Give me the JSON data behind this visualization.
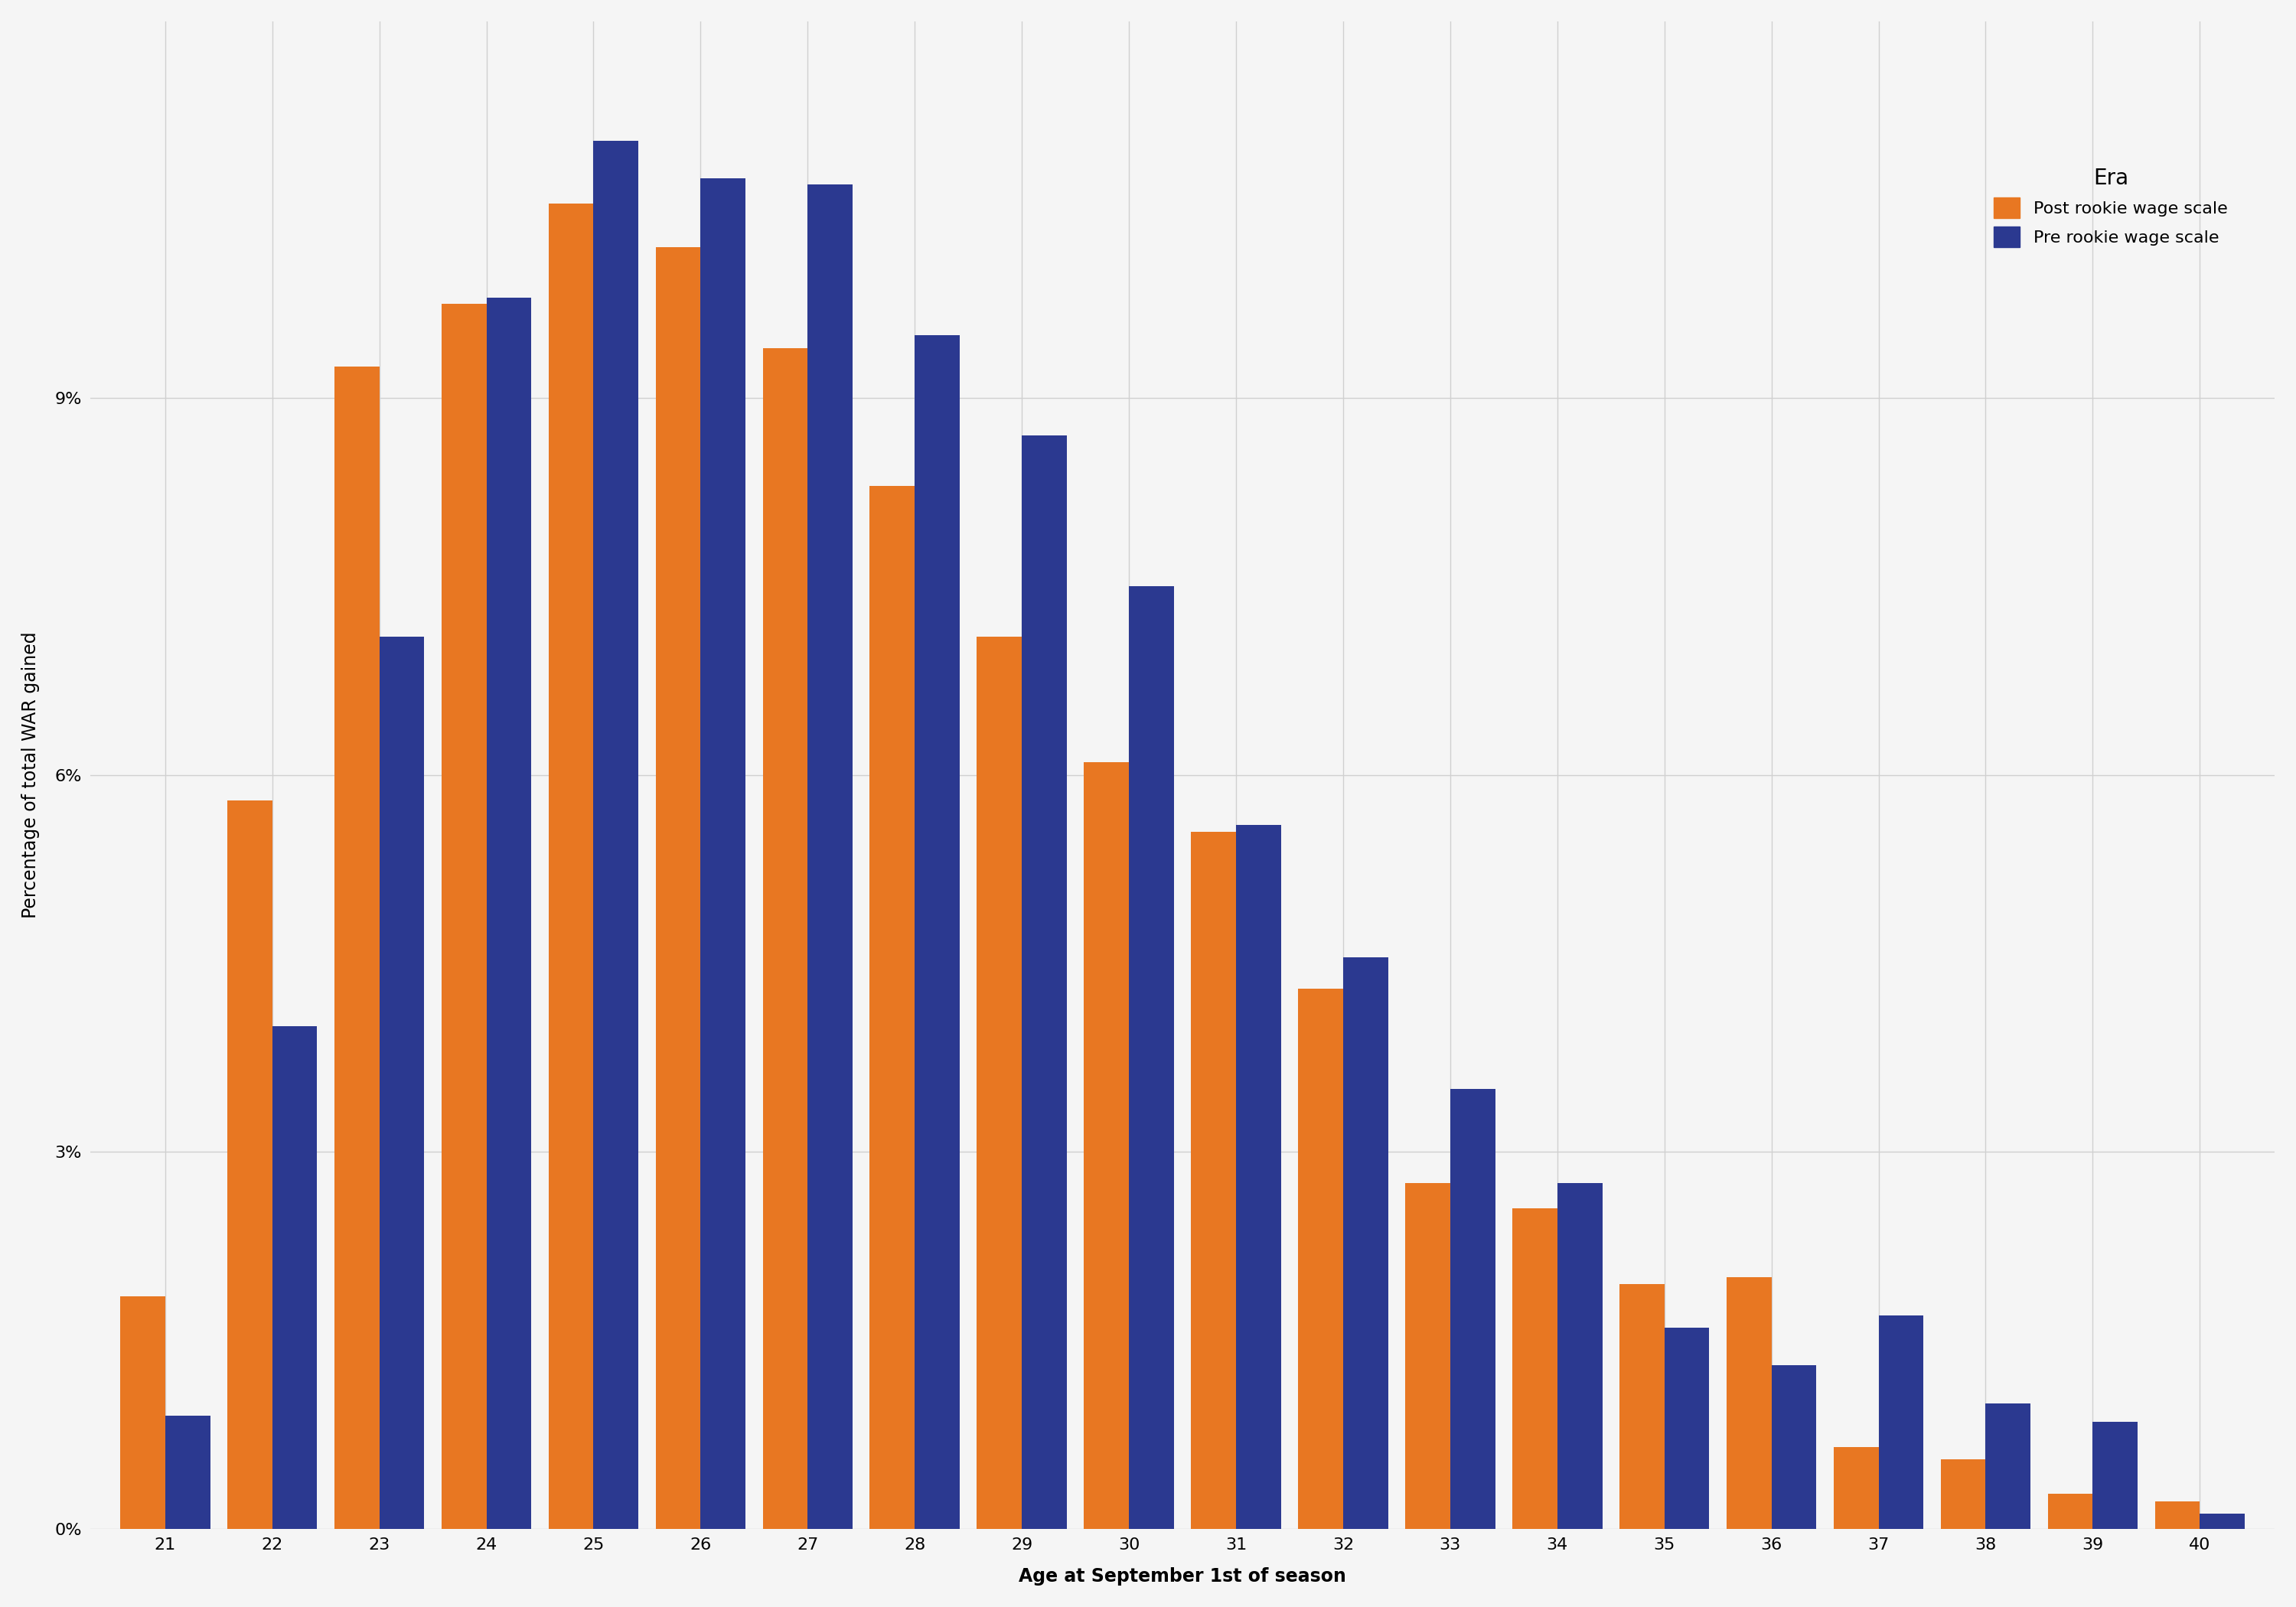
{
  "xlabel": "Age at September 1st of season",
  "ylabel": "Percentage of total WAR gained",
  "ages": [
    21,
    22,
    23,
    24,
    25,
    26,
    27,
    28,
    29,
    30,
    31,
    32,
    33,
    34,
    35,
    36,
    37,
    38,
    39,
    40
  ],
  "post_values": [
    1.85,
    5.8,
    9.25,
    9.75,
    10.55,
    10.2,
    9.4,
    8.3,
    7.1,
    6.1,
    5.55,
    4.3,
    2.75,
    2.55,
    1.95,
    2.0,
    0.65,
    0.55,
    0.28,
    0.22
  ],
  "pre_values": [
    0.9,
    4.0,
    7.1,
    9.8,
    11.05,
    10.75,
    10.7,
    9.5,
    8.7,
    7.5,
    5.6,
    4.55,
    3.5,
    2.75,
    1.6,
    1.3,
    1.7,
    1.0,
    0.85,
    0.12
  ],
  "post_color": "#E87722",
  "pre_color": "#2B3990",
  "background_color": "#f5f5f5",
  "grid_color": "#d0d0d0",
  "yticks": [
    0,
    3,
    6,
    9
  ],
  "ylim": [
    0,
    12
  ],
  "legend_title": "Era",
  "legend_post": "Post rookie wage scale",
  "legend_pre": "Pre rookie wage scale",
  "title_fontsize": 28,
  "subtitle_fontsize": 17,
  "axis_label_fontsize": 17,
  "tick_fontsize": 16,
  "legend_fontsize": 16
}
